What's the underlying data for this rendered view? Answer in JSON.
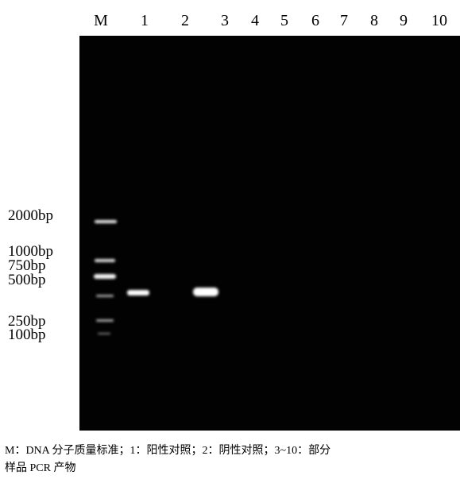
{
  "lane_labels": [
    "M",
    "1",
    "2",
    "3",
    "4",
    "5",
    "6",
    "7",
    "8",
    "9",
    "10"
  ],
  "size_labels": [
    "2000bp",
    "1000bp",
    "750bp",
    "500bp",
    "250bp",
    "100bp"
  ],
  "caption": {
    "line1": "M：DNA 分子质量标准；1：阳性对照；2：阴性对照；3~10：部分",
    "line2": "样品 PCR 产物"
  }
}
